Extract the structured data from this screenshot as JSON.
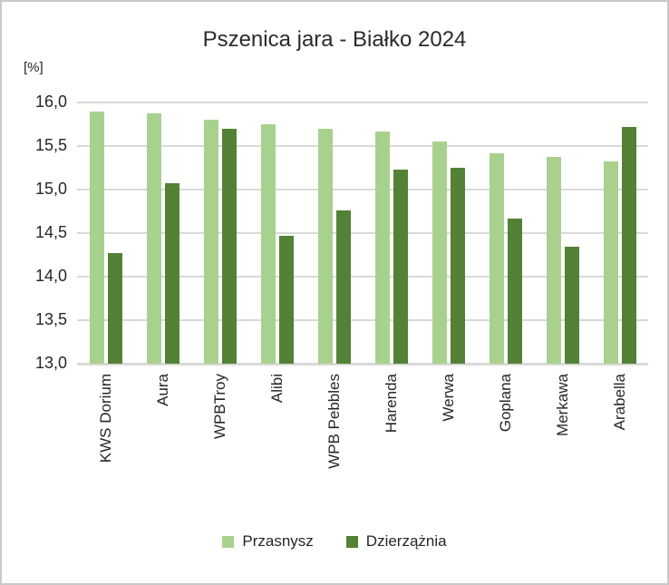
{
  "chart_data": {
    "type": "bar",
    "title": "Pszenica jara - Białko 2024",
    "y_axis_unit_label": "[%]",
    "xlabel": "",
    "ylabel": "[%]",
    "ylim": [
      13.0,
      16.0
    ],
    "ytick_step": 0.5,
    "ytick_labels_top_to_bottom": [
      "16,0",
      "15,5",
      "15,0",
      "14,5",
      "14,0",
      "13,5",
      "13,0"
    ],
    "grid": true,
    "legend_position": "bottom",
    "categories": [
      "KWS Dorium",
      "Aura",
      "WPBTroy",
      "Alibi",
      "WPB Pebbles",
      "Harenda",
      "Werwa",
      "Goplana",
      "Merkawa",
      "Arabella"
    ],
    "series": [
      {
        "name": "Przasnysz",
        "color": "#a9d18e",
        "values": [
          15.9,
          15.87,
          15.8,
          15.75,
          15.7,
          15.67,
          15.55,
          15.42,
          15.37,
          15.32
        ]
      },
      {
        "name": "Dzierzążnia",
        "color": "#538135",
        "values": [
          14.27,
          15.07,
          15.7,
          14.47,
          14.76,
          15.23,
          15.25,
          14.67,
          14.34,
          15.72
        ]
      }
    ]
  },
  "colors": {
    "gridline": "#d9d9d9",
    "text": "#262626",
    "background": "#ffffff",
    "border": "#c9c9c9"
  }
}
